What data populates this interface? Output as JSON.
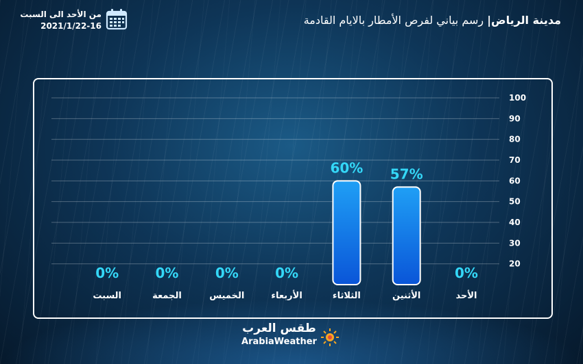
{
  "header": {
    "city": "مدينة الرياض|",
    "subtitle": " رسم بياني لفرص الأمطار بالايام القادمة"
  },
  "date": {
    "range": "من الأحد  الى السبت",
    "dates": "2021/1/22-16",
    "icon": "calendar-icon"
  },
  "brand": {
    "arabic": "طقس العرب",
    "english": "ArabiaWeather",
    "icon": "arabiaweather-logo"
  },
  "chart_data": {
    "type": "bar",
    "categories": [
      "الأحد",
      "الأثنين",
      "الثلاثاء",
      "الأربعاء",
      "الخميس",
      "الجمعة",
      "السبت"
    ],
    "values": [
      0,
      57,
      60,
      0,
      0,
      0,
      0
    ],
    "value_labels": [
      "0%",
      "57%",
      "60%",
      "0%",
      "0%",
      "0%",
      "0%"
    ],
    "yticks": [
      20,
      30,
      40,
      50,
      60,
      70,
      80,
      90,
      100
    ],
    "ylim": [
      10,
      100
    ],
    "ylabel": "",
    "xlabel": "",
    "title": "",
    "grid": true,
    "colors": {
      "bar_top": "#1f9ff5",
      "bar_bottom": "#0a55d8",
      "label": "#34d7f7"
    }
  }
}
